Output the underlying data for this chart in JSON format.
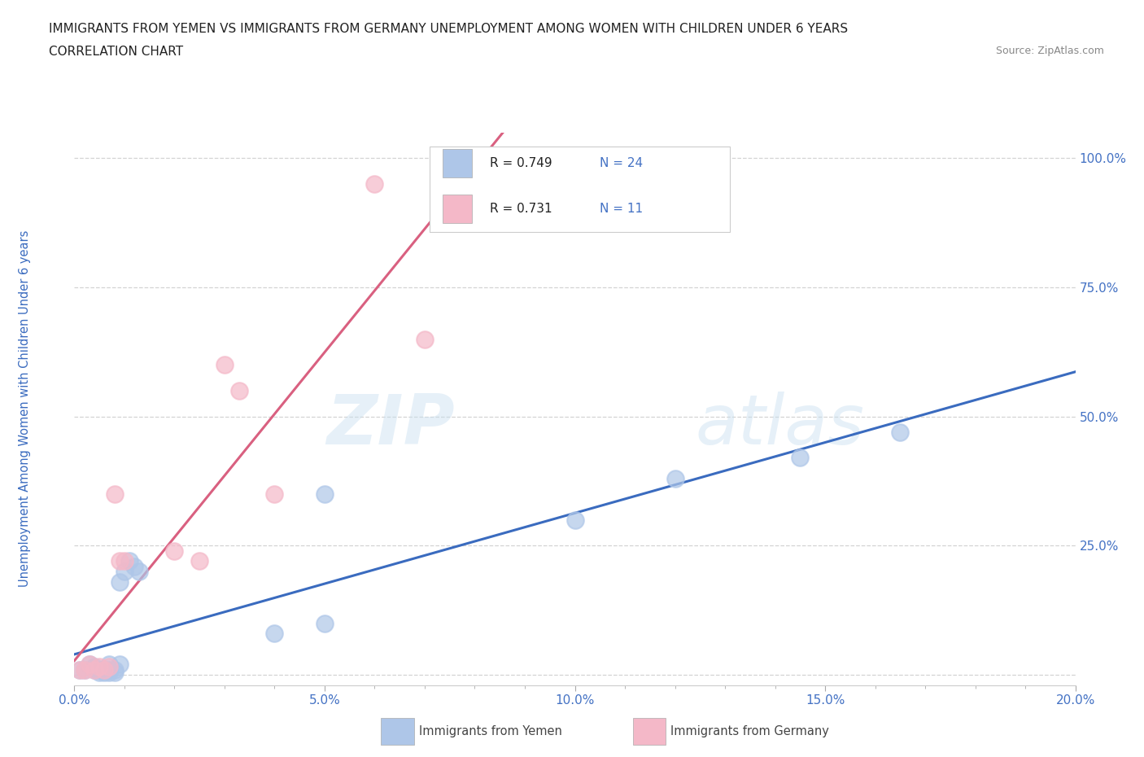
{
  "title_line1": "IMMIGRANTS FROM YEMEN VS IMMIGRANTS FROM GERMANY UNEMPLOYMENT AMONG WOMEN WITH CHILDREN UNDER 6 YEARS",
  "title_line2": "CORRELATION CHART",
  "source_text": "Source: ZipAtlas.com",
  "ylabel": "Unemployment Among Women with Children Under 6 years",
  "xlim": [
    0.0,
    0.2
  ],
  "ylim": [
    -0.02,
    1.05
  ],
  "ytick_positions": [
    0.0,
    0.25,
    0.5,
    0.75,
    1.0
  ],
  "ytick_labels": [
    "",
    "25.0%",
    "50.0%",
    "75.0%",
    "100.0%"
  ],
  "xtick_vals": [
    0.0,
    0.05,
    0.1,
    0.15,
    0.2
  ],
  "xtick_labels": [
    "0.0%",
    "5.0%",
    "10.0%",
    "15.0%",
    "20.0%"
  ],
  "tick_color": "#4472c4",
  "background_color": "#ffffff",
  "grid_color": "#c8c8c8",
  "yemen_color": "#aec6e8",
  "germany_color": "#f4b8c8",
  "yemen_line_color": "#3a6bbf",
  "germany_line_color": "#d96080",
  "yemen_scatter_x": [
    0.001,
    0.002,
    0.003,
    0.004,
    0.004,
    0.005,
    0.005,
    0.006,
    0.006,
    0.007,
    0.007,
    0.007,
    0.008,
    0.008,
    0.009,
    0.009,
    0.01,
    0.011,
    0.012,
    0.013,
    0.04,
    0.05,
    0.05,
    0.1,
    0.12,
    0.145,
    0.165
  ],
  "yemen_scatter_y": [
    0.01,
    0.01,
    0.02,
    0.01,
    0.015,
    0.005,
    0.01,
    0.005,
    0.01,
    0.005,
    0.01,
    0.02,
    0.005,
    0.01,
    0.02,
    0.18,
    0.2,
    0.22,
    0.21,
    0.2,
    0.08,
    0.1,
    0.35,
    0.3,
    0.38,
    0.42,
    0.47
  ],
  "germany_scatter_x": [
    0.001,
    0.002,
    0.003,
    0.004,
    0.005,
    0.006,
    0.007,
    0.008,
    0.009,
    0.01,
    0.02,
    0.025,
    0.03,
    0.033,
    0.04,
    0.06,
    0.07
  ],
  "germany_scatter_y": [
    0.01,
    0.01,
    0.02,
    0.01,
    0.015,
    0.01,
    0.015,
    0.35,
    0.22,
    0.22,
    0.24,
    0.22,
    0.6,
    0.55,
    0.35,
    0.95,
    0.65
  ],
  "legend_label_yemen": "Immigrants from Yemen",
  "legend_label_germany": "Immigrants from Germany",
  "watermark_zip": "ZIP",
  "watermark_atlas": "atlas"
}
